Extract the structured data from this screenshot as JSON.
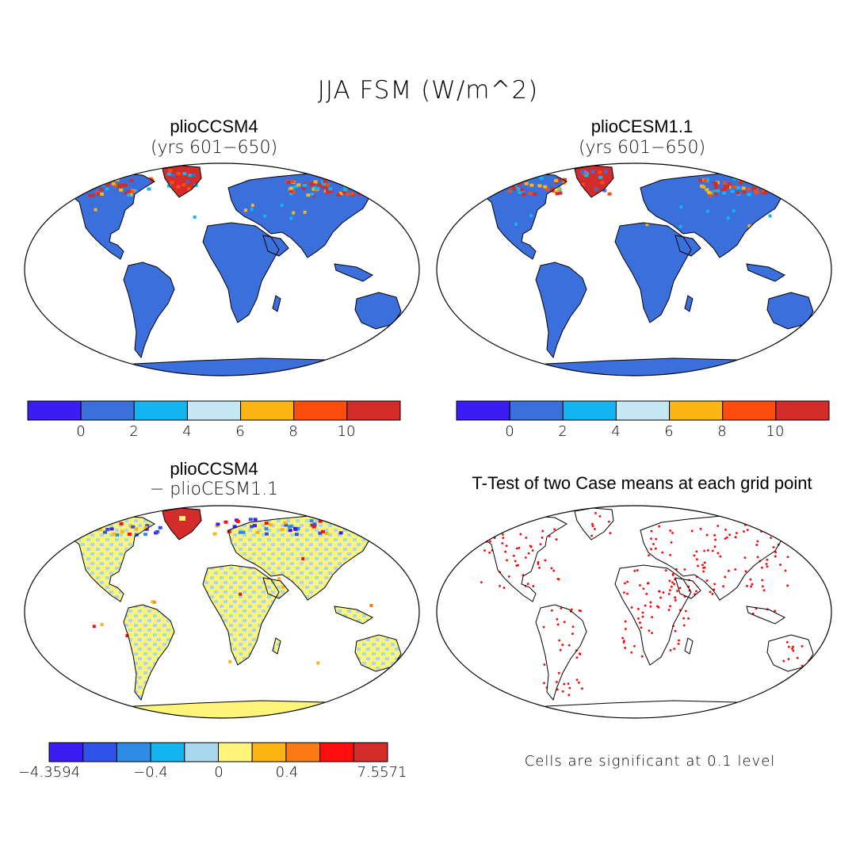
{
  "figure": {
    "title": "JJA FSM (W/m^2)",
    "note": "Cells are significant at 0.1 level"
  },
  "colors": {
    "ocean": "#ffffff",
    "coast": "#000000",
    "sig_dot": "#ff0000"
  },
  "panels": [
    {
      "id": "top-left",
      "title": "plioCCSM4",
      "subtitle": "(yrs 601−650)"
    },
    {
      "id": "top-right",
      "title": "plioCESM1.1",
      "subtitle": "(yrs 601−650)"
    },
    {
      "id": "bottom-left",
      "title": "plioCCSM4",
      "subtitle": "− plioCESM1.1"
    },
    {
      "id": "bottom-right",
      "title": "T-Test of two Case means at each grid point",
      "subtitle": ""
    }
  ],
  "colorbars": {
    "absolute": {
      "colors": [
        "#3b1cf2",
        "#3a6fdc",
        "#14b4f0",
        "#c6e8f5",
        "#fdb515",
        "#fc4d0f",
        "#d42b2b"
      ],
      "ticks": [
        "0",
        "2",
        "4",
        "6",
        "8",
        "10"
      ]
    },
    "difference": {
      "colors": [
        "#3b1cf2",
        "#3152e6",
        "#2e8ce6",
        "#14b4f0",
        "#a8d8ef",
        "#fff47a",
        "#fdb515",
        "#fc7a12",
        "#ff0d0d",
        "#d42b2b"
      ],
      "ticks": [
        "−4.3594",
        "−0.4",
        "0",
        "0.4",
        "7.5571"
      ]
    }
  }
}
